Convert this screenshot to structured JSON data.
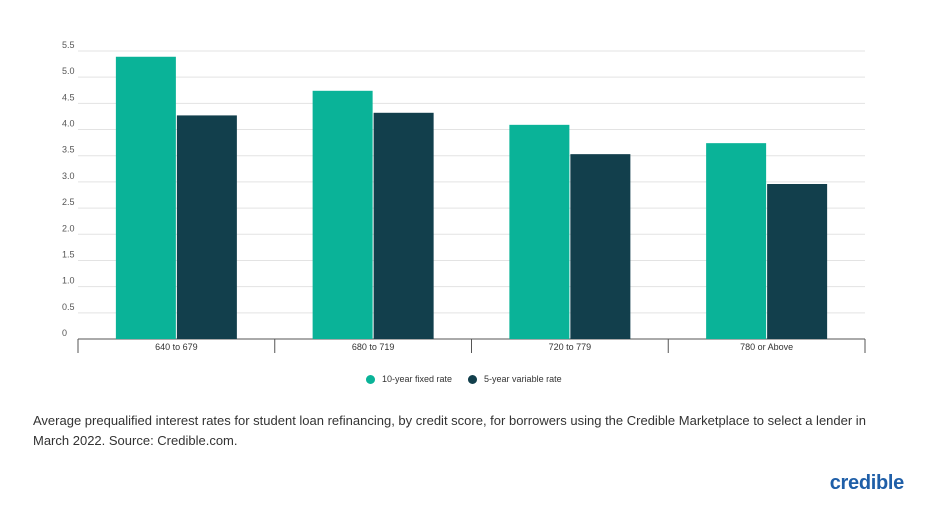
{
  "chart_data": {
    "type": "bar",
    "categories": [
      "640 to 679",
      "680 to 719",
      "720 to 779",
      "780 or Above"
    ],
    "series": [
      {
        "name": "10-year fixed rate",
        "color": "#0ab398",
        "values": [
          5.39,
          4.74,
          4.09,
          3.74
        ]
      },
      {
        "name": "5-year variable rate",
        "color": "#123f4c",
        "values": [
          4.27,
          4.32,
          3.53,
          2.96
        ]
      }
    ],
    "y_ticks": [
      "0",
      "0.5",
      "1.0",
      "1.5",
      "2.0",
      "2.5",
      "3.0",
      "3.5",
      "4.0",
      "4.5",
      "5.0",
      "5.5"
    ],
    "ylim": [
      0,
      5.5
    ],
    "grid": true,
    "legend_position": "bottom-center"
  },
  "caption": "Average prequalified interest rates for student loan refinancing, by credit score, for borrowers using the Credible Marketplace to select a lender in March 2022. Source: Credible.com.",
  "brand": {
    "name": "credible",
    "color": "#1f5fa8"
  }
}
